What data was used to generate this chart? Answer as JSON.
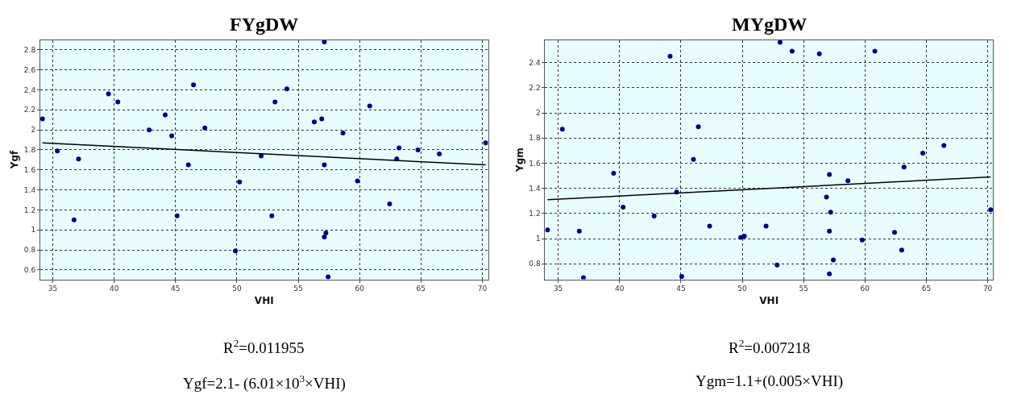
{
  "chart_data": [
    {
      "type": "scatter",
      "title": "FYgDW",
      "xlabel": "VHI",
      "ylabel": "Ygf",
      "xlim": [
        33.98,
        70.47
      ],
      "ylim": [
        0.506,
        2.9
      ],
      "xticks": [
        35,
        40,
        45,
        50,
        55,
        60,
        65,
        70
      ],
      "yticks": [
        0.6,
        0.8,
        1,
        1.2,
        1.4,
        1.6,
        1.8,
        2,
        2.2,
        2.4,
        2.6,
        2.8
      ],
      "grid": true,
      "marker": "circle",
      "annotations": [
        "R$^{2}$=0.011955",
        "Ygf=2.1- (6.01×10$^{3}$×VHI)"
      ],
      "series": [
        {
          "color": "#00008b",
          "x": [
            34.16,
            35.37,
            37.1,
            36.73,
            39.54,
            40.3,
            42.85,
            44.16,
            44.69,
            45.13,
            46.05,
            46.47,
            47.39,
            49.88,
            50.22,
            51.98,
            52.85,
            53.11,
            54.08,
            56.31,
            56.92,
            57.13,
            57.13,
            57.26,
            57.13,
            57.44,
            58.65,
            59.83,
            60.83,
            62.45,
            63.03,
            63.22,
            64.76,
            66.5,
            70.28
          ],
          "values": [
            2.11,
            1.79,
            1.71,
            1.1,
            2.36,
            2.28,
            2.0,
            2.15,
            1.94,
            1.14,
            1.65,
            2.45,
            2.02,
            0.79,
            1.48,
            1.74,
            1.14,
            2.28,
            2.41,
            2.08,
            2.11,
            2.88,
            1.65,
            0.97,
            0.93,
            0.53,
            1.97,
            1.49,
            2.24,
            1.26,
            1.71,
            1.82,
            1.8,
            1.76,
            1.87
          ]
        },
        {
          "type": "line",
          "color": "#000000",
          "marker": "none",
          "x": [
            34.16,
            70.28
          ],
          "values": [
            1.87,
            1.65
          ]
        }
      ]
    },
    {
      "type": "scatter",
      "title": "MYgDW",
      "xlabel": "VHI",
      "ylabel": "Ygm",
      "xlim": [
        33.94,
        70.42
      ],
      "ylim": [
        0.677,
        2.58
      ],
      "xticks": [
        35,
        40,
        45,
        50,
        55,
        60,
        65,
        70
      ],
      "yticks": [
        0.8,
        1,
        1.2,
        1.4,
        1.6,
        1.8,
        2,
        2.2,
        2.4
      ],
      "grid": true,
      "marker": "circle",
      "annotations": [
        "R$^{2}$=0.007218",
        "Ygm=1.1+(0.005×VHI)"
      ],
      "series": [
        {
          "color": "#00008b",
          "x": [
            34.13,
            35.34,
            36.72,
            37.06,
            39.52,
            40.29,
            42.82,
            44.12,
            44.65,
            45.07,
            46.02,
            46.42,
            47.34,
            49.88,
            50.17,
            51.94,
            52.84,
            53.08,
            54.06,
            56.28,
            56.86,
            57.1,
            57.1,
            57.2,
            57.1,
            57.42,
            58.61,
            59.77,
            60.8,
            62.41,
            62.99,
            63.18,
            64.71,
            66.43,
            70.24
          ],
          "values": [
            1.07,
            1.87,
            1.06,
            0.69,
            1.52,
            1.25,
            1.18,
            2.45,
            1.37,
            0.7,
            1.63,
            1.89,
            1.1,
            1.01,
            1.02,
            1.1,
            0.79,
            2.56,
            2.49,
            2.47,
            1.33,
            1.51,
            1.06,
            1.21,
            0.72,
            0.83,
            1.46,
            0.99,
            2.49,
            1.05,
            0.91,
            1.57,
            1.68,
            1.74,
            1.23
          ]
        },
        {
          "type": "line",
          "color": "#000000",
          "marker": "none",
          "x": [
            34.13,
            70.24
          ],
          "values": [
            1.31,
            1.49
          ]
        }
      ]
    }
  ]
}
